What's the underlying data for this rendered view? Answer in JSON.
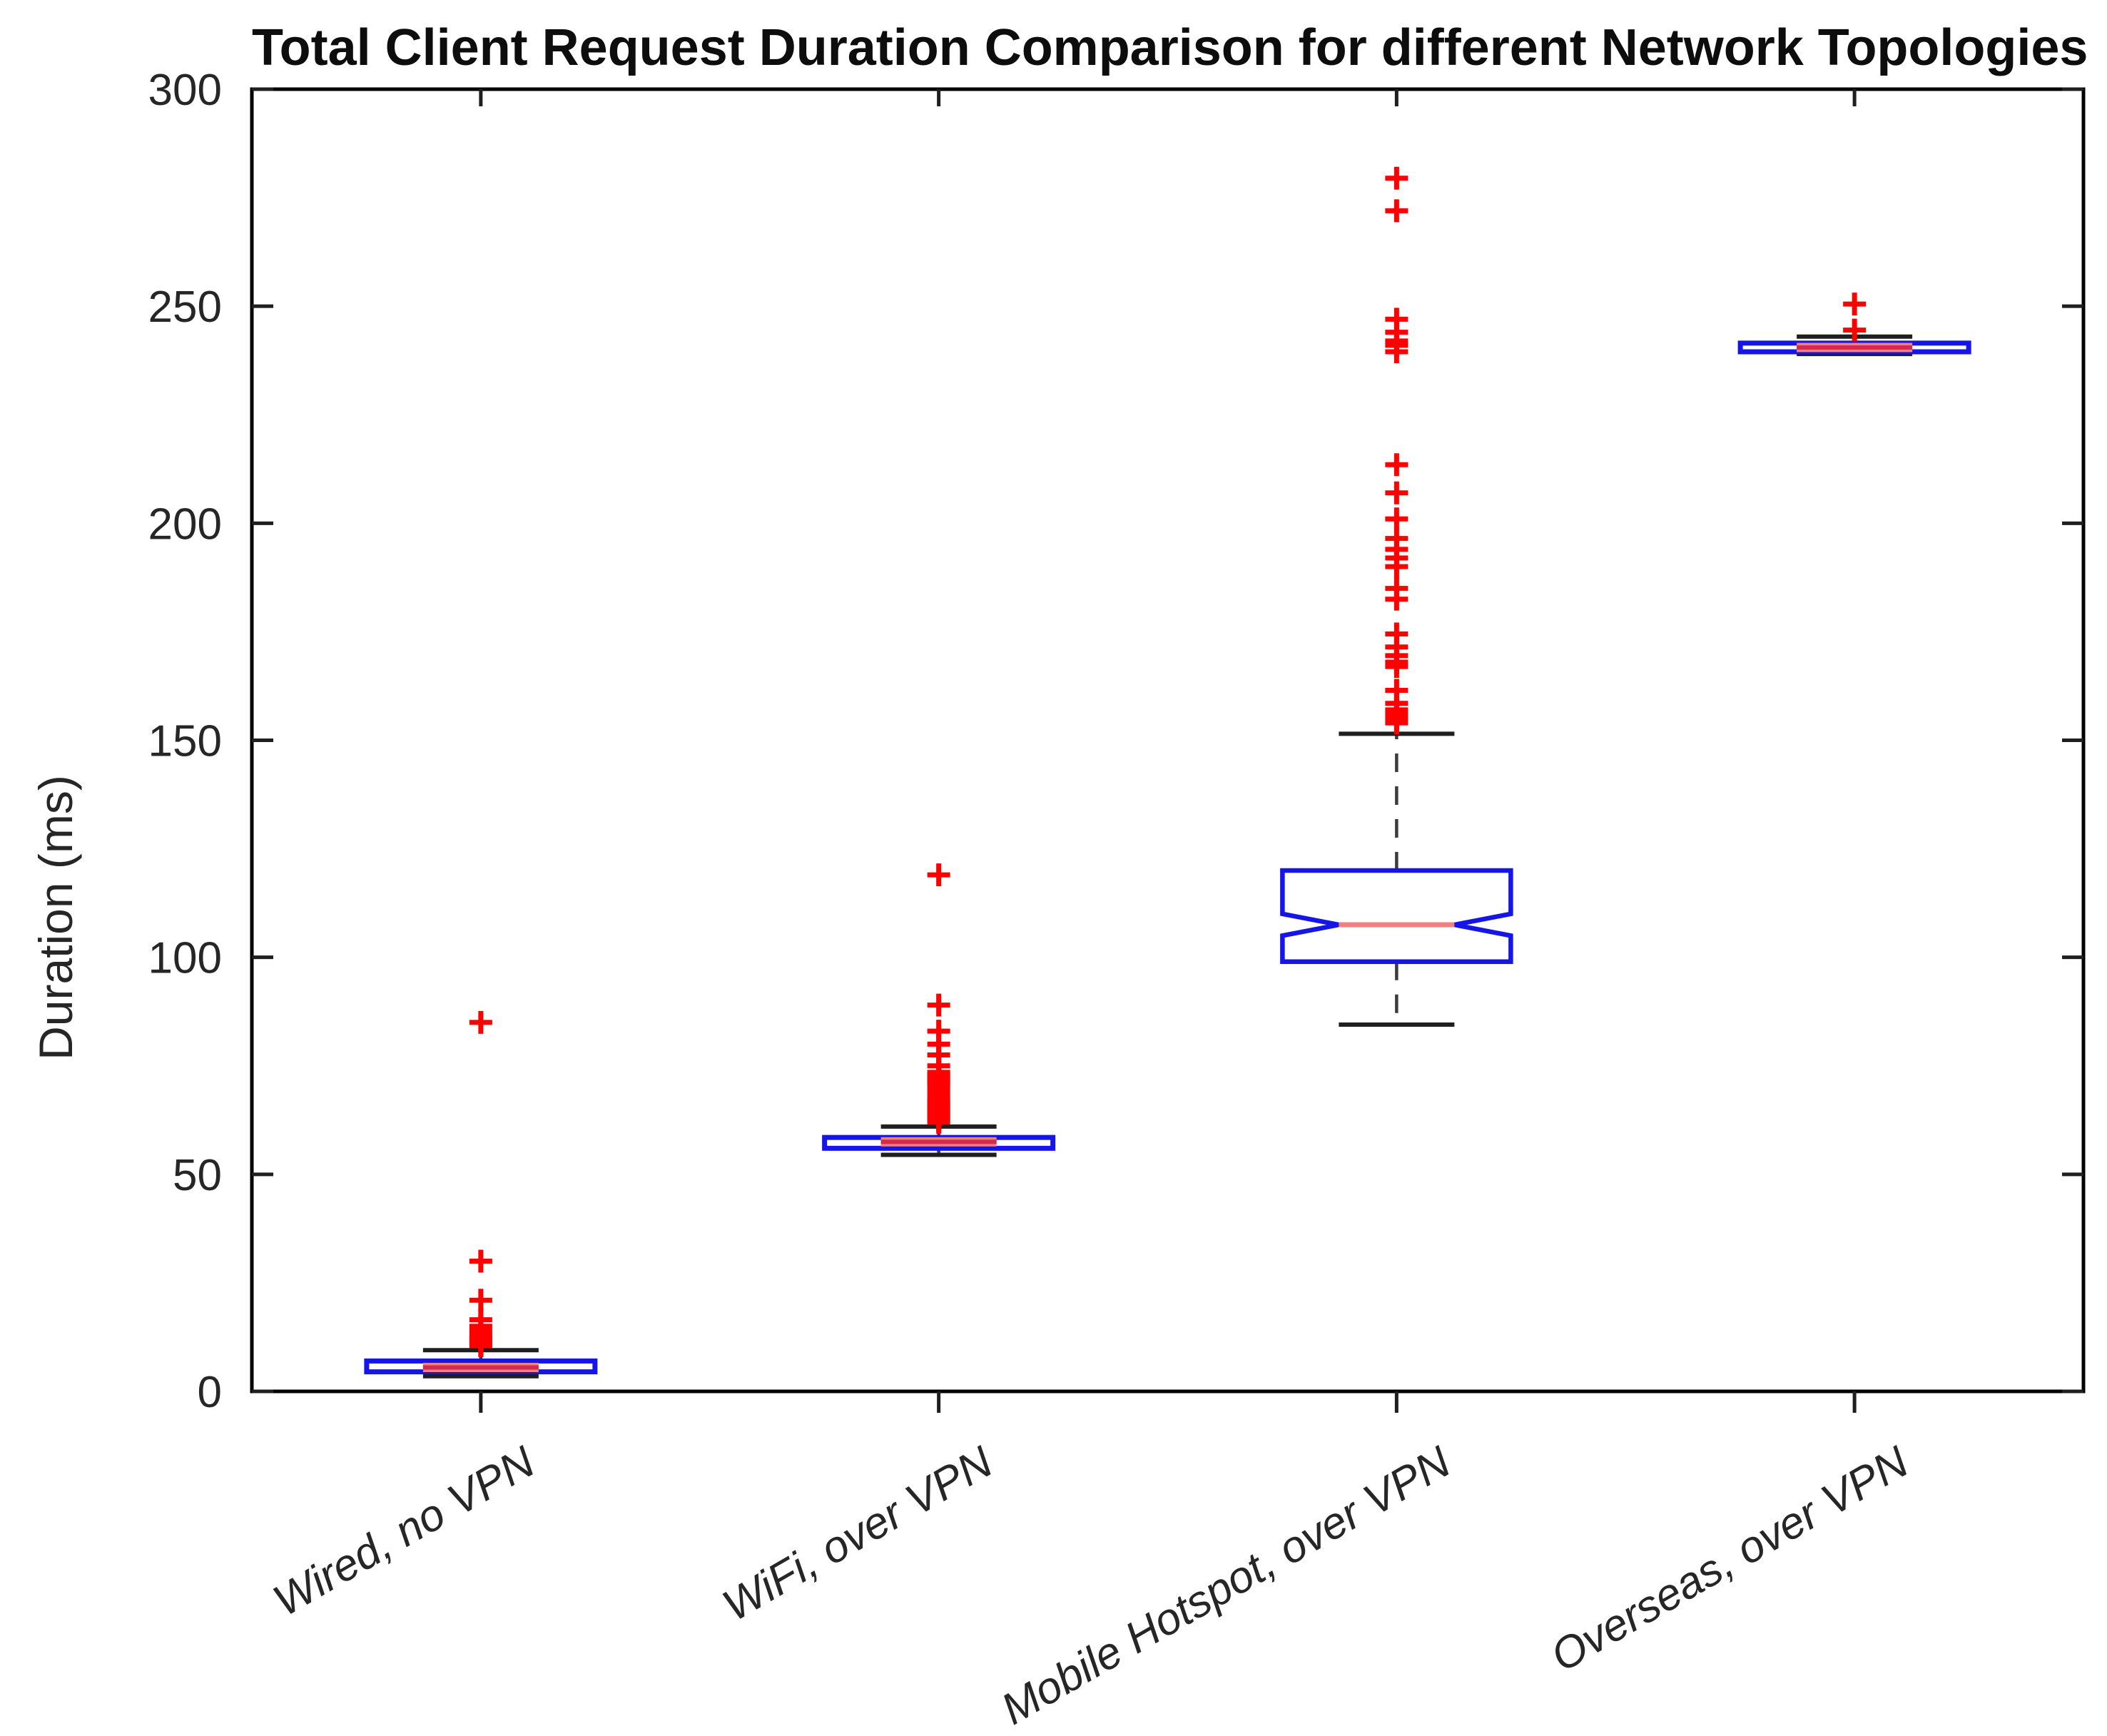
{
  "figure": {
    "title": "Total Client Request Duration Comparison for different Network Topologies",
    "y_axis_label": "Duration (ms)"
  },
  "chart_data": {
    "type": "boxplot",
    "title": "Total Client Request Duration Comparison for different Network Topologies",
    "xlabel": "",
    "ylabel": "Duration (ms)",
    "ylim": [
      0,
      300
    ],
    "yticks": [
      0,
      50,
      100,
      150,
      200,
      250,
      300
    ],
    "grid": false,
    "legend": null,
    "notched": true,
    "outlier_marker": "+",
    "categories": [
      "Wired, no VPN",
      "WiFi, over VPN",
      "Mobile Hotspot, over VPN",
      "Overseas, over VPN"
    ],
    "series": [
      {
        "name": "Wired, no VPN",
        "whisker_low": 3.5,
        "q1": 4.5,
        "median": 5.5,
        "q3": 7,
        "whisker_high": 9.5,
        "notch": [
          4.8,
          6.3
        ],
        "outliers": [
          10.5,
          11,
          11.5,
          12,
          12.5,
          13,
          14,
          15,
          16.5,
          21,
          30,
          85
        ]
      },
      {
        "name": "WiFi, over VPN",
        "whisker_low": 54.5,
        "q1": 56,
        "median": 57.5,
        "q3": 58.5,
        "whisker_high": 61,
        "notch": [
          57,
          58.2
        ],
        "outliers": [
          62,
          62.5,
          63,
          63.5,
          64,
          64.5,
          65,
          65.5,
          66,
          66.5,
          67,
          67.5,
          68.5,
          69.5,
          70.5,
          71,
          71.5,
          72,
          72.5,
          73,
          73.5,
          75,
          77.5,
          80,
          83,
          89,
          119
        ]
      },
      {
        "name": "Mobile Hotspot, over VPN",
        "whisker_low": 84.5,
        "q1": 99,
        "median": 107.5,
        "q3": 120,
        "whisker_high": 151.5,
        "notch": [
          105,
          110
        ],
        "outliers": [
          154,
          155,
          156,
          157,
          158.5,
          161.5,
          167,
          168,
          169.5,
          171.5,
          174.5,
          182.5,
          185,
          190,
          192,
          194,
          196.5,
          201,
          207,
          213.5,
          239.5,
          241,
          242,
          244,
          247,
          272,
          279.5
        ]
      },
      {
        "name": "Overseas, over VPN",
        "whisker_low": 239,
        "q1": 239.5,
        "median": 240.5,
        "q3": 241.5,
        "whisker_high": 243,
        "notch": [
          240.2,
          240.9
        ],
        "outliers": [
          244.5,
          250.5
        ]
      }
    ],
    "colors": {
      "box_edge": "#1515e8",
      "median": "#f08080",
      "median_strong": "#d52a50",
      "outlier": "#ff0000",
      "whisker": "#3c3c3c",
      "cap": "#1f1f1f",
      "axis": "#000000",
      "tick_label": "#262626"
    }
  }
}
